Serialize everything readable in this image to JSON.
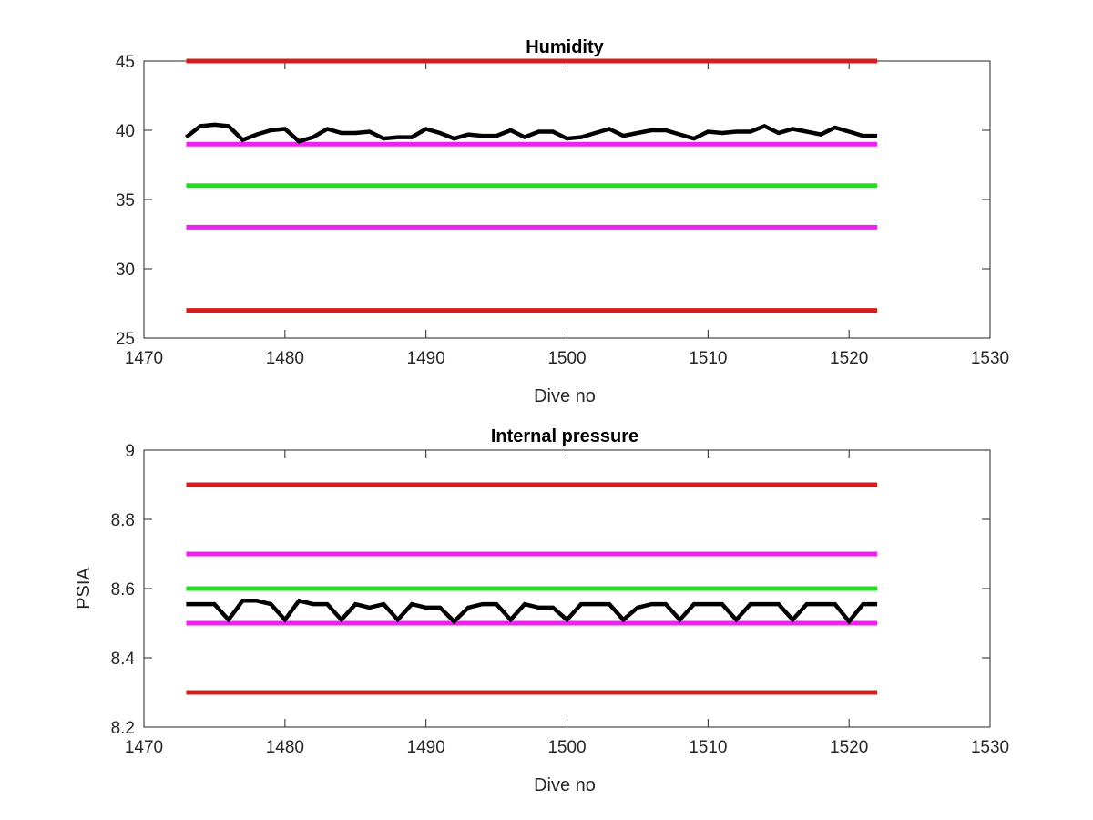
{
  "chart_data": [
    {
      "type": "line",
      "title": "Humidity",
      "xlabel": "Dive no",
      "ylabel": "",
      "xlim": [
        1470,
        1530
      ],
      "ylim": [
        25,
        45
      ],
      "xticks": [
        1470,
        1480,
        1490,
        1500,
        1510,
        1520,
        1530
      ],
      "xtick_labels": [
        "1470",
        "1480",
        "1490",
        "1500",
        "1510",
        "1520",
        "1530"
      ],
      "yticks": [
        25,
        30,
        35,
        40,
        45
      ],
      "ytick_labels": [
        "25",
        "30",
        "35",
        "40",
        "45"
      ],
      "grid": false,
      "legend": "none",
      "reference_lines": [
        {
          "y": 45,
          "x_start": 1473,
          "x_end": 1522,
          "color": "#d11f1f"
        },
        {
          "y": 39,
          "x_start": 1473,
          "x_end": 1522,
          "color": "#ee22ee"
        },
        {
          "y": 36,
          "x_start": 1473,
          "x_end": 1522,
          "color": "#22dd22"
        },
        {
          "y": 33,
          "x_start": 1473,
          "x_end": 1522,
          "color": "#ee22ee"
        },
        {
          "y": 27,
          "x_start": 1473,
          "x_end": 1522,
          "color": "#d11f1f"
        }
      ],
      "series": [
        {
          "color": "#000000",
          "x": [
            1473,
            1474,
            1475,
            1476,
            1477,
            1478,
            1479,
            1480,
            1481,
            1482,
            1483,
            1484,
            1485,
            1486,
            1487,
            1488,
            1489,
            1490,
            1491,
            1492,
            1493,
            1494,
            1495,
            1496,
            1497,
            1498,
            1499,
            1500,
            1501,
            1502,
            1503,
            1504,
            1505,
            1506,
            1507,
            1508,
            1509,
            1510,
            1511,
            1512,
            1513,
            1514,
            1515,
            1516,
            1517,
            1518,
            1519,
            1520,
            1521,
            1522
          ],
          "y": [
            39.5,
            40.3,
            40.4,
            40.3,
            39.3,
            39.7,
            40.0,
            40.1,
            39.2,
            39.5,
            40.1,
            39.8,
            39.8,
            39.9,
            39.4,
            39.5,
            39.5,
            40.1,
            39.8,
            39.4,
            39.7,
            39.6,
            39.6,
            40.0,
            39.5,
            39.9,
            39.9,
            39.4,
            39.5,
            39.8,
            40.1,
            39.6,
            39.8,
            40.0,
            40.0,
            39.7,
            39.4,
            39.9,
            39.8,
            39.9,
            39.9,
            40.3,
            39.8,
            40.1,
            39.9,
            39.7,
            40.2,
            39.9,
            39.6,
            39.6
          ]
        }
      ]
    },
    {
      "type": "line",
      "title": "Internal pressure",
      "xlabel": "Dive no",
      "ylabel": "PSIA",
      "xlim": [
        1470,
        1530
      ],
      "ylim": [
        8.2,
        9.0
      ],
      "xticks": [
        1470,
        1480,
        1490,
        1500,
        1510,
        1520,
        1530
      ],
      "xtick_labels": [
        "1470",
        "1480",
        "1490",
        "1500",
        "1510",
        "1520",
        "1530"
      ],
      "yticks": [
        8.2,
        8.4,
        8.6,
        8.8,
        9.0
      ],
      "ytick_labels": [
        "8.2",
        "8.4",
        "8.6",
        "8.8",
        "9"
      ],
      "grid": false,
      "legend": "none",
      "reference_lines": [
        {
          "y": 8.9,
          "x_start": 1473,
          "x_end": 1522,
          "color": "#d11f1f"
        },
        {
          "y": 8.7,
          "x_start": 1473,
          "x_end": 1522,
          "color": "#ee22ee"
        },
        {
          "y": 8.6,
          "x_start": 1473,
          "x_end": 1522,
          "color": "#22dd22"
        },
        {
          "y": 8.5,
          "x_start": 1473,
          "x_end": 1522,
          "color": "#ee22ee"
        },
        {
          "y": 8.3,
          "x_start": 1473,
          "x_end": 1522,
          "color": "#d11f1f"
        }
      ],
      "series": [
        {
          "color": "#000000",
          "x": [
            1473,
            1474,
            1475,
            1476,
            1477,
            1478,
            1479,
            1480,
            1481,
            1482,
            1483,
            1484,
            1485,
            1486,
            1487,
            1488,
            1489,
            1490,
            1491,
            1492,
            1493,
            1494,
            1495,
            1496,
            1497,
            1498,
            1499,
            1500,
            1501,
            1502,
            1503,
            1504,
            1505,
            1506,
            1507,
            1508,
            1509,
            1510,
            1511,
            1512,
            1513,
            1514,
            1515,
            1516,
            1517,
            1518,
            1519,
            1520,
            1521,
            1522
          ],
          "y": [
            8.555,
            8.555,
            8.555,
            8.51,
            8.565,
            8.565,
            8.555,
            8.51,
            8.565,
            8.555,
            8.555,
            8.51,
            8.555,
            8.545,
            8.555,
            8.51,
            8.555,
            8.545,
            8.545,
            8.505,
            8.545,
            8.555,
            8.555,
            8.51,
            8.555,
            8.545,
            8.545,
            8.51,
            8.555,
            8.555,
            8.555,
            8.51,
            8.545,
            8.555,
            8.555,
            8.51,
            8.555,
            8.555,
            8.555,
            8.51,
            8.555,
            8.555,
            8.555,
            8.51,
            8.555,
            8.555,
            8.555,
            8.505,
            8.555,
            8.555
          ]
        }
      ]
    }
  ]
}
